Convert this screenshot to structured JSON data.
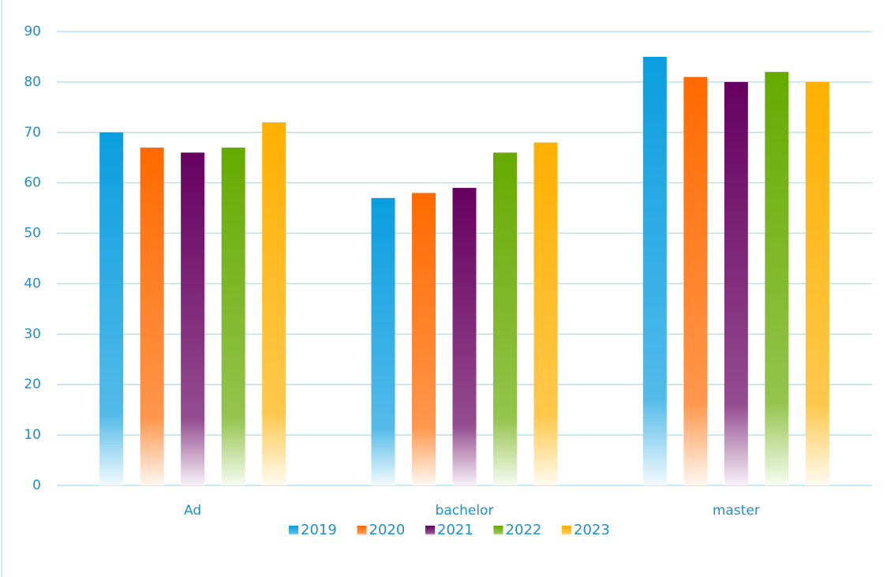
{
  "chart_data": {
    "type": "bar",
    "categories": [
      "Ad",
      "bachelor",
      "master"
    ],
    "series": [
      {
        "name": "2019",
        "color": "#0a9ee0",
        "values": [
          70,
          57,
          85
        ]
      },
      {
        "name": "2020",
        "color": "#ff6a00",
        "values": [
          67,
          58,
          81
        ]
      },
      {
        "name": "2021",
        "color": "#660060",
        "values": [
          66,
          59,
          80
        ]
      },
      {
        "name": "2022",
        "color": "#66aa00",
        "values": [
          67,
          66,
          82
        ]
      },
      {
        "name": "2023",
        "color": "#ffb000",
        "values": [
          72,
          68,
          80
        ]
      }
    ],
    "ylim": [
      0,
      90
    ],
    "yticks": [
      0,
      10,
      20,
      30,
      40,
      50,
      60,
      70,
      80,
      90
    ],
    "grid": true,
    "legend": "bottom"
  }
}
